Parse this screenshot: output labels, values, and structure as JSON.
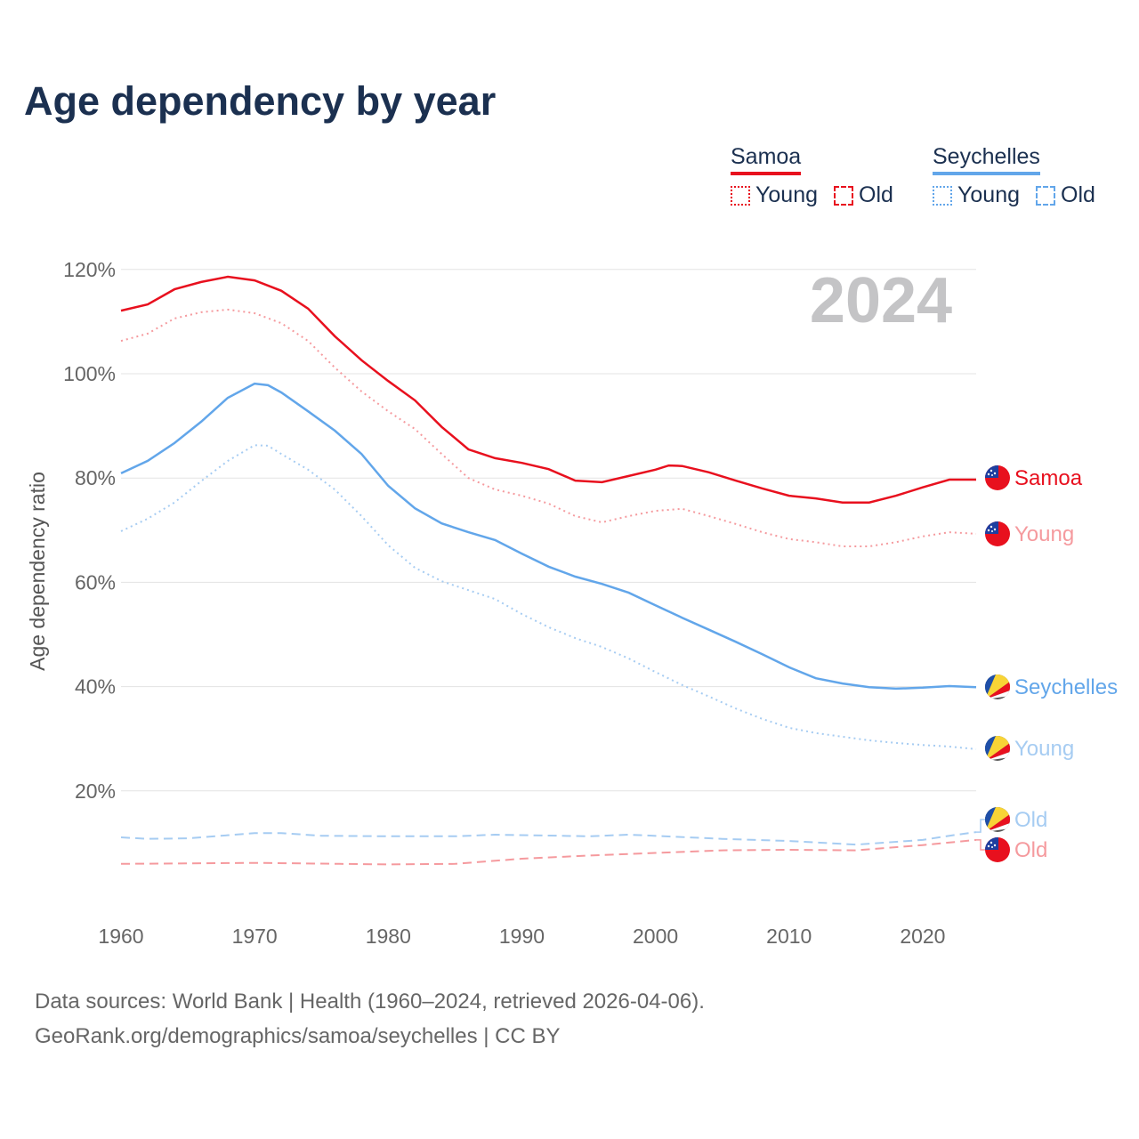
{
  "title": "Age dependency by year",
  "legend": {
    "samoa": {
      "name": "Samoa",
      "young": "Young",
      "old": "Old",
      "color": "#e8101e"
    },
    "seychelles": {
      "name": "Seychelles",
      "young": "Young",
      "old": "Old",
      "color": "#62a6ea"
    }
  },
  "year_watermark": "2024",
  "footer": {
    "line1": "Data sources: World Bank | Health (1960–2024, retrieved 2026-04-06).",
    "line2": "GeoRank.org/demographics/samoa/seychelles | CC BY"
  },
  "chart_data": {
    "type": "line",
    "title": "Age dependency by year",
    "xlabel": "",
    "ylabel": "Age dependency ratio",
    "xlim": [
      1960,
      2024
    ],
    "ylim": [
      0,
      120
    ],
    "xticks": [
      "1960",
      "1970",
      "1980",
      "1990",
      "2000",
      "2010",
      "2020"
    ],
    "yticks": [
      "20%",
      "40%",
      "60%",
      "80%",
      "100%",
      "120%"
    ],
    "series": [
      {
        "name": "Samoa",
        "label": "Samoa",
        "style": "solid",
        "color": "#e8101e",
        "x": [
          1960,
          1962,
          1964,
          1966,
          1968,
          1970,
          1972,
          1974,
          1976,
          1978,
          1980,
          1982,
          1984,
          1986,
          1988,
          1990,
          1992,
          1994,
          1996,
          1998,
          2000,
          2001,
          2002,
          2004,
          2006,
          2008,
          2010,
          2012,
          2014,
          2016,
          2018,
          2020,
          2022,
          2024
        ],
        "y": [
          112.1,
          113.3,
          116.2,
          117.6,
          118.6,
          117.9,
          115.9,
          112.5,
          107.2,
          102.6,
          98.6,
          94.9,
          89.8,
          85.5,
          83.8,
          82.9,
          81.7,
          79.5,
          79.2,
          80.4,
          81.6,
          82.4,
          82.3,
          81.1,
          79.5,
          78,
          76.6,
          76.1,
          75.3,
          75.3,
          76.6,
          78.2,
          79.7,
          79.7
        ]
      },
      {
        "name": "Samoa Young",
        "label": "Young",
        "style": "dotted",
        "color": "#f59a9e",
        "x": [
          1960,
          1962,
          1964,
          1966,
          1968,
          1970,
          1972,
          1974,
          1976,
          1978,
          1980,
          1982,
          1984,
          1986,
          1988,
          1990,
          1992,
          1994,
          1996,
          1998,
          2000,
          2002,
          2004,
          2006,
          2008,
          2010,
          2012,
          2014,
          2016,
          2018,
          2020,
          2022,
          2024
        ],
        "y": [
          106.3,
          107.7,
          110.6,
          111.8,
          112.3,
          111.6,
          109.7,
          106.3,
          101.2,
          96.6,
          92.8,
          89.4,
          84.6,
          80,
          77.8,
          76.6,
          75.1,
          72.7,
          71.5,
          72.7,
          73.7,
          74.1,
          72.7,
          71.2,
          69.6,
          68.3,
          67.7,
          66.9,
          66.9,
          67.7,
          68.8,
          69.6,
          69.3
        ]
      },
      {
        "name": "Samoa Old",
        "label": "Old",
        "style": "dashed",
        "color": "#f59a9e",
        "x": [
          1960,
          1970,
          1980,
          1985,
          1990,
          1995,
          2000,
          2005,
          2010,
          2015,
          2020,
          2024
        ],
        "y": [
          6.0,
          6.2,
          5.9,
          6.0,
          7.0,
          7.6,
          8.1,
          8.6,
          8.7,
          8.6,
          9.6,
          10.6
        ]
      },
      {
        "name": "Seychelles",
        "label": "Seychelles",
        "style": "solid",
        "color": "#62a6ea",
        "x": [
          1960,
          1962,
          1964,
          1966,
          1968,
          1970,
          1971,
          1972,
          1974,
          1976,
          1978,
          1980,
          1982,
          1984,
          1986,
          1988,
          1990,
          1992,
          1994,
          1996,
          1998,
          2000,
          2002,
          2004,
          2006,
          2008,
          2010,
          2012,
          2014,
          2016,
          2018,
          2020,
          2022,
          2024
        ],
        "y": [
          80.9,
          83.3,
          86.7,
          90.8,
          95.4,
          98.1,
          97.8,
          96.4,
          92.8,
          89.1,
          84.6,
          78.5,
          74.2,
          71.3,
          69.6,
          68.1,
          65.5,
          63,
          61.1,
          59.7,
          58,
          55.6,
          53.2,
          50.9,
          48.6,
          46.2,
          43.7,
          41.6,
          40.6,
          39.9,
          39.6,
          39.8,
          40.1,
          39.9
        ]
      },
      {
        "name": "Seychelles Young",
        "label": "Young",
        "style": "dotted",
        "color": "#a6ccf2",
        "x": [
          1960,
          1962,
          1964,
          1966,
          1968,
          1970,
          1971,
          1972,
          1974,
          1976,
          1978,
          1980,
          1982,
          1984,
          1986,
          1988,
          1990,
          1992,
          1994,
          1996,
          1998,
          2000,
          2002,
          2004,
          2006,
          2008,
          2010,
          2012,
          2014,
          2016,
          2018,
          2020,
          2022,
          2024
        ],
        "y": [
          69.8,
          72.2,
          75.3,
          79.4,
          83.3,
          86.3,
          86.2,
          84.6,
          81.6,
          77.8,
          72.7,
          67.1,
          62.8,
          60.2,
          58.5,
          56.8,
          53.9,
          51.4,
          49.3,
          47.6,
          45.4,
          42.8,
          40.3,
          38.1,
          35.8,
          33.8,
          32.1,
          31.1,
          30.4,
          29.7,
          29.2,
          28.8,
          28.5,
          28
        ]
      },
      {
        "name": "Seychelles Old",
        "label": "Old",
        "style": "dashed",
        "color": "#a6ccf2",
        "x": [
          1960,
          1962,
          1965,
          1970,
          1972,
          1975,
          1980,
          1985,
          1988,
          1995,
          1998,
          2005,
          2010,
          2015,
          2020,
          2022,
          2024
        ],
        "y": [
          11.1,
          10.8,
          10.9,
          11.9,
          11.9,
          11.4,
          11.3,
          11.3,
          11.6,
          11.3,
          11.6,
          10.8,
          10.4,
          9.7,
          10.6,
          11.4,
          12.1
        ]
      }
    ]
  }
}
